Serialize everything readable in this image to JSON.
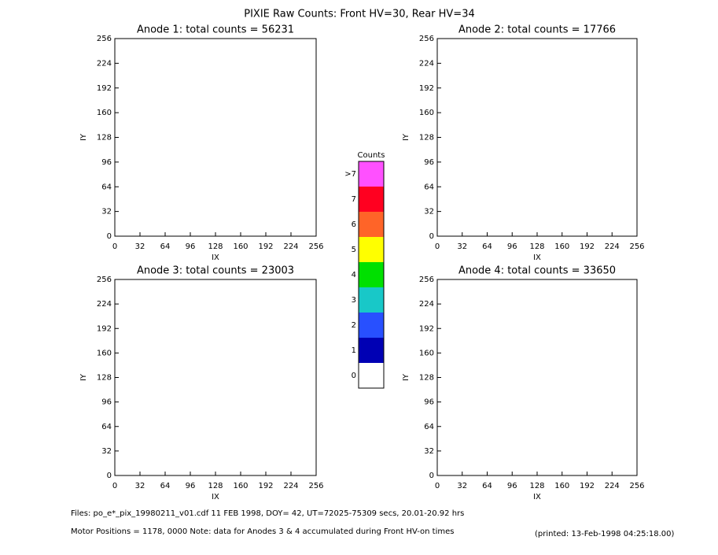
{
  "title": "PIXIE Raw Counts:  Front HV=30, Rear HV=34",
  "chart_data": [
    {
      "type": "heatmap",
      "title": "Anode 1: total counts = 56231",
      "xlabel": "IX",
      "ylabel": "IY",
      "xlim": [
        0,
        256
      ],
      "xticks": [
        0,
        32,
        64,
        96,
        128,
        160,
        192,
        224,
        256
      ],
      "ylim": [
        0,
        256
      ],
      "yticks": [
        0,
        32,
        64,
        96,
        128,
        160,
        192,
        224,
        256
      ]
    },
    {
      "type": "heatmap",
      "title": "Anode 2: total counts = 17766",
      "xlabel": "IX",
      "ylabel": "IY",
      "xlim": [
        0,
        256
      ],
      "xticks": [
        0,
        32,
        64,
        96,
        128,
        160,
        192,
        224,
        256
      ],
      "ylim": [
        0,
        256
      ],
      "yticks": [
        0,
        32,
        64,
        96,
        128,
        160,
        192,
        224,
        256
      ]
    },
    {
      "type": "heatmap",
      "title": "Anode 3: total counts = 23003",
      "xlabel": "IX",
      "ylabel": "IY",
      "xlim": [
        0,
        256
      ],
      "xticks": [
        0,
        32,
        64,
        96,
        128,
        160,
        192,
        224,
        256
      ],
      "ylim": [
        0,
        256
      ],
      "yticks": [
        0,
        32,
        64,
        96,
        128,
        160,
        192,
        224,
        256
      ]
    },
    {
      "type": "heatmap",
      "title": "Anode 4: total counts = 33650",
      "xlabel": "IX",
      "ylabel": "IY",
      "xlim": [
        0,
        256
      ],
      "xticks": [
        0,
        32,
        64,
        96,
        128,
        160,
        192,
        224,
        256
      ],
      "ylim": [
        0,
        256
      ],
      "yticks": [
        0,
        32,
        64,
        96,
        128,
        160,
        192,
        224,
        256
      ]
    }
  ],
  "colorbar": {
    "title": "Counts",
    "levels": [
      {
        "label": "0",
        "color": "#ffffff"
      },
      {
        "label": "1",
        "color": "#0000b4"
      },
      {
        "label": "2",
        "color": "#2850ff"
      },
      {
        "label": "3",
        "color": "#18c8c8"
      },
      {
        "label": "4",
        "color": "#00e000"
      },
      {
        "label": "5",
        "color": "#ffff00"
      },
      {
        "label": "6",
        "color": "#ff6428"
      },
      {
        "label": "7",
        "color": "#ff0020"
      },
      {
        "label": ">7",
        "color": "#ff50ff"
      }
    ]
  },
  "footer": {
    "files": "Files: po_e*_pix_19980211_v01.cdf     11 FEB 1998, DOY= 42, UT=72025-75309 secs, 20.01-20.92 hrs",
    "motor": "Motor Positions = 1178, 0000    Note: data for Anodes 3 & 4 accumulated during Front HV-on times",
    "printed": "(printed: 13-Feb-1998 04:25:18.00)"
  }
}
